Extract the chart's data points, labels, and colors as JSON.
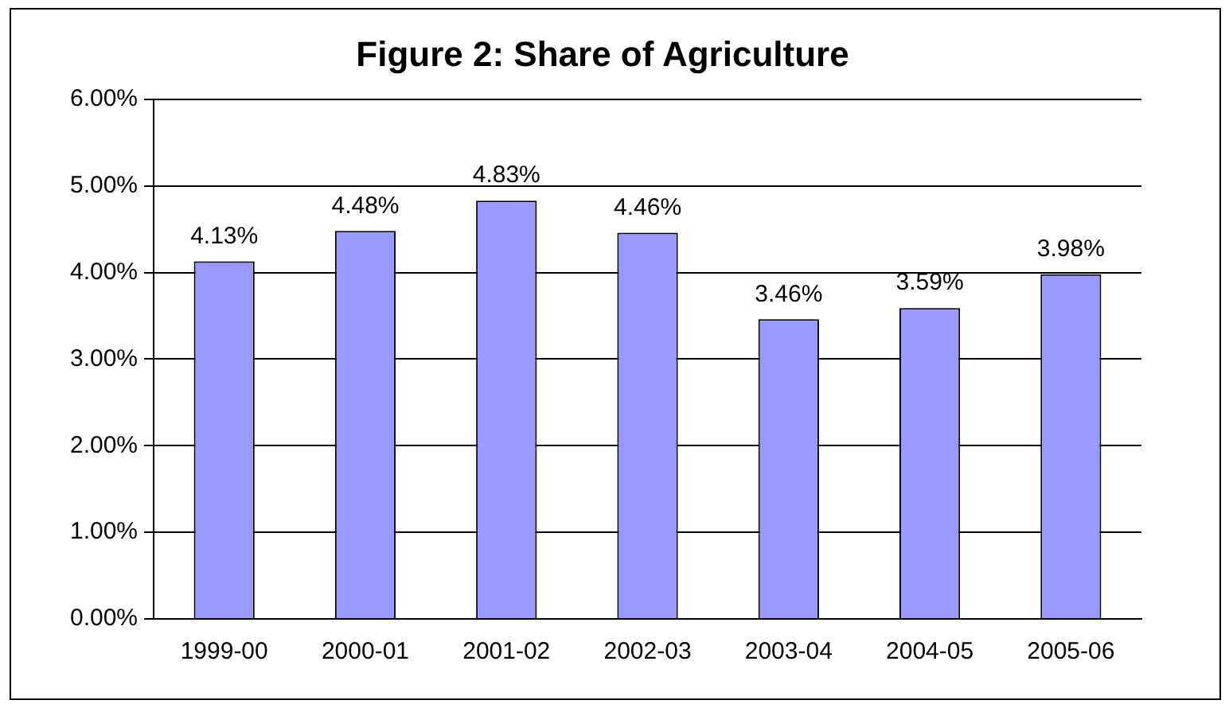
{
  "chart_data": {
    "type": "bar",
    "title": "Figure 2: Share of Agriculture",
    "categories": [
      "1999-00",
      "2000-01",
      "2001-02",
      "2002-03",
      "2003-04",
      "2004-05",
      "2005-06"
    ],
    "values": [
      4.13,
      4.48,
      4.83,
      4.46,
      3.46,
      3.59,
      3.98
    ],
    "value_labels": [
      "4.13%",
      "4.48%",
      "4.83%",
      "4.46%",
      "3.46%",
      "3.59%",
      "3.98%"
    ],
    "color": "#9999ff",
    "ylim": [
      0,
      6
    ],
    "yticks": [
      {
        "value": 0,
        "label": "0.00%"
      },
      {
        "value": 1,
        "label": "1.00%"
      },
      {
        "value": 2,
        "label": "2.00%"
      },
      {
        "value": 3,
        "label": "3.00%"
      },
      {
        "value": 4,
        "label": "4.00%"
      },
      {
        "value": 5,
        "label": "5.00%"
      },
      {
        "value": 6,
        "label": "6.00%"
      }
    ],
    "grid": "y",
    "legend": false
  }
}
